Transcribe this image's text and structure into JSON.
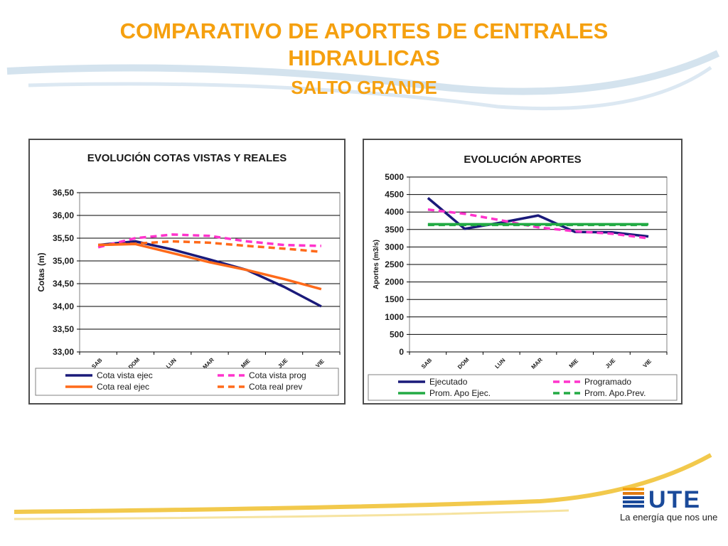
{
  "slide": {
    "title_line1": "COMPARATIVO DE APORTES DE CENTRALES",
    "title_line2": "HIDRAULICAS",
    "subtitle": "SALTO GRANDE",
    "title_color": "#f5a00f"
  },
  "logo": {
    "wordmark": "UTE",
    "tagline": "La energía que nos une"
  },
  "chart_data": [
    {
      "type": "line",
      "title": "EVOLUCIÓN  COTAS VISTAS Y REALES",
      "xlabel": "",
      "ylabel": "Cotas (m)",
      "categories": [
        "SAB",
        "DOM",
        "LUN",
        "MAR",
        "MIE",
        "JUE",
        "VIE"
      ],
      "ylim": [
        33.0,
        36.5
      ],
      "yticks": [
        33.0,
        33.5,
        34.0,
        34.5,
        35.0,
        35.5,
        36.0,
        36.5
      ],
      "ytick_labels": [
        "33,00",
        "33,50",
        "34,00",
        "34,50",
        "35,00",
        "35,50",
        "36,00",
        "36,50"
      ],
      "grid": true,
      "legend_position": "bottom",
      "series": [
        {
          "name": "Cota vista ejec",
          "color": "#1a1a7a",
          "dash": false,
          "values": [
            35.35,
            35.43,
            35.25,
            35.03,
            34.8,
            34.43,
            34.0
          ]
        },
        {
          "name": "Cota vista prog",
          "color": "#ff33cc",
          "dash": true,
          "values": [
            35.3,
            35.5,
            35.58,
            35.55,
            35.43,
            35.35,
            35.33
          ]
        },
        {
          "name": "Cota real ejec",
          "color": "#ff6a1a",
          "dash": false,
          "values": [
            35.35,
            35.37,
            35.17,
            34.97,
            34.8,
            34.6,
            34.38
          ]
        },
        {
          "name": "Cota real prev",
          "color": "#ff6a1a",
          "dash": true,
          "values": [
            35.35,
            35.38,
            35.43,
            35.4,
            35.33,
            35.27,
            35.2
          ]
        }
      ]
    },
    {
      "type": "line",
      "title": "EVOLUCIÓN  APORTES",
      "xlabel": "",
      "ylabel": "Aportes (m3/s)",
      "categories": [
        "SAB",
        "DOM",
        "LUN",
        "MAR",
        "MIE",
        "JUE",
        "VIE"
      ],
      "ylim": [
        0,
        5000
      ],
      "yticks": [
        0,
        500,
        1000,
        1500,
        2000,
        2500,
        3000,
        3500,
        4000,
        4500,
        5000
      ],
      "ytick_labels": [
        "0",
        "500",
        "1000",
        "1500",
        "2000",
        "2500",
        "3000",
        "3500",
        "4000",
        "4500",
        "5000"
      ],
      "grid": true,
      "legend_position": "bottom",
      "series": [
        {
          "name": "Ejecutado",
          "color": "#1a1a7a",
          "dash": false,
          "values": [
            4400,
            3520,
            3700,
            3900,
            3430,
            3420,
            3300
          ]
        },
        {
          "name": "Programado",
          "color": "#ff33cc",
          "dash": true,
          "values": [
            4070,
            3950,
            3760,
            3560,
            3450,
            3380,
            3250
          ]
        },
        {
          "name": "Prom. Apo Ejec.",
          "color": "#22aa44",
          "dash": false,
          "values": [
            3650,
            3650,
            3650,
            3650,
            3650,
            3650,
            3650
          ]
        },
        {
          "name": "Prom. Apo.Prev.",
          "color": "#22aa44",
          "dash": true,
          "values": [
            3630,
            3630,
            3630,
            3630,
            3630,
            3630,
            3630
          ]
        }
      ]
    }
  ]
}
